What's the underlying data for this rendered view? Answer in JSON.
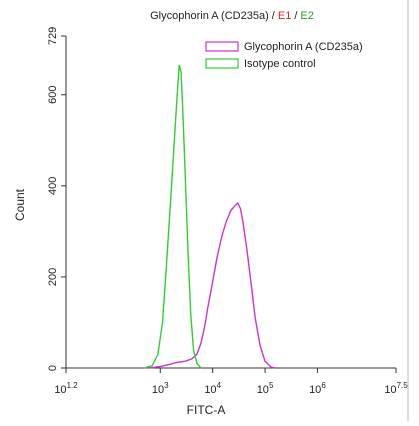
{
  "chart_data": {
    "type": "line",
    "title": [
      {
        "text": "Glycophorin A (CD235a) /",
        "color": "#222222"
      },
      {
        "text": "E1",
        "color": "#e0202a"
      },
      {
        "text": "/",
        "color": "#222222"
      },
      {
        "text": "E2",
        "color": "#2a9a2a"
      }
    ],
    "x_label": "FITC-A",
    "y_label": "Count",
    "log_x": true,
    "xlim": [
      15.8489,
      31622776.6
    ],
    "xticks": [
      {
        "value": 15.8489,
        "label": "10",
        "exponent": "1.2"
      },
      {
        "value": 1000,
        "label": "10",
        "exponent": "3"
      },
      {
        "value": 10000,
        "label": "10",
        "exponent": "4"
      },
      {
        "value": 100000,
        "label": "10",
        "exponent": "5"
      },
      {
        "value": 1000000,
        "label": "10",
        "exponent": "6"
      },
      {
        "value": 31622776.6,
        "label": "10",
        "exponent": "7.5"
      }
    ],
    "ylim": [
      0,
      729
    ],
    "yticks": [
      0,
      200,
      400,
      600,
      729
    ],
    "legend": "top-right",
    "series": [
      {
        "name": "Glycophorin A (CD235a)",
        "color": "#cc33cc",
        "x": [
          600,
          1000,
          1500,
          2000,
          3000,
          4000,
          5000,
          6000,
          7000,
          8000,
          10000,
          12000,
          15000,
          18000,
          22000,
          26000,
          30000,
          34000,
          38000,
          45000,
          55000,
          65000,
          80000,
          100000,
          130000,
          160000
        ],
        "values": [
          0,
          3,
          8,
          12,
          15,
          20,
          30,
          55,
          90,
          130,
          190,
          240,
          290,
          320,
          345,
          355,
          362,
          350,
          320,
          260,
          180,
          110,
          50,
          15,
          2,
          0
        ]
      },
      {
        "name": "Isotype control",
        "color": "#33cc33",
        "x": [
          500,
          700,
          900,
          1100,
          1300,
          1500,
          1700,
          1900,
          2100,
          2300,
          2500,
          2700,
          3000,
          3400,
          3800,
          4300,
          5000,
          6000
        ],
        "values": [
          0,
          5,
          30,
          100,
          220,
          330,
          430,
          520,
          600,
          665,
          650,
          560,
          420,
          250,
          120,
          40,
          10,
          0
        ]
      }
    ]
  }
}
